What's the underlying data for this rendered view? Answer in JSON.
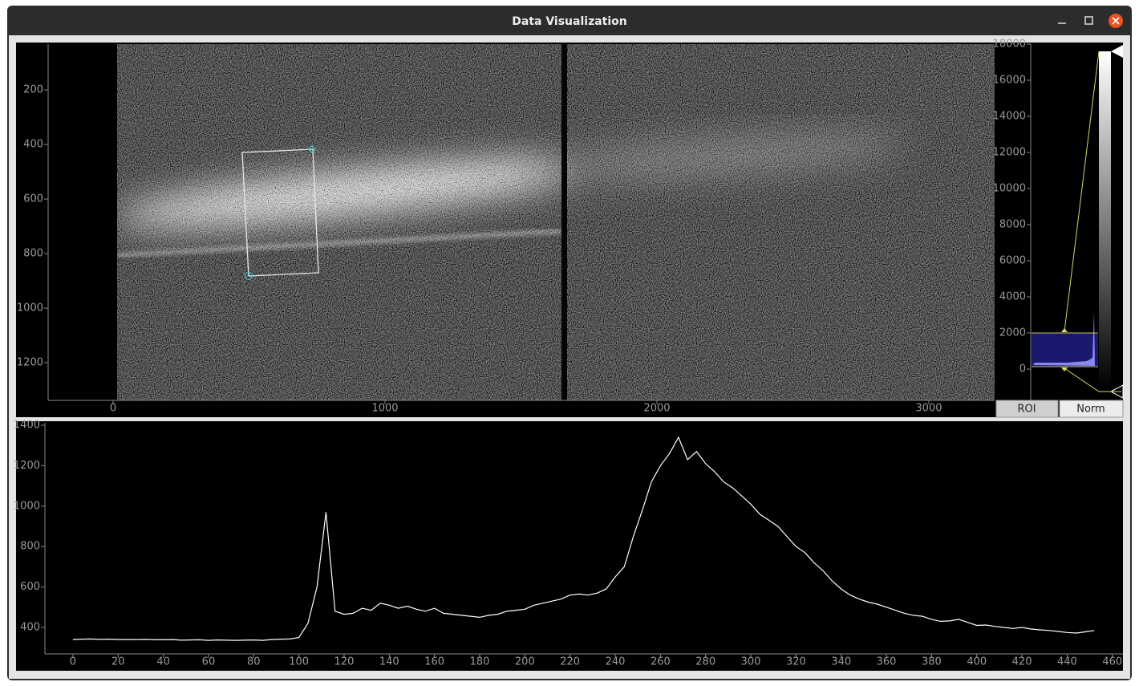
{
  "window": {
    "title": "Data Visualization"
  },
  "image_view": {
    "xlim": [
      -239,
      3242
    ],
    "xticks": [
      0,
      1000,
      2000,
      3000
    ],
    "ylim": [
      1338,
      32
    ],
    "yticks": [
      200,
      400,
      600,
      800,
      1000,
      1200
    ]
  },
  "histogram": {
    "ylim": [
      -1733,
      18000
    ],
    "yticks": [
      0,
      2000,
      4000,
      6000,
      8000,
      10000,
      12000,
      14000,
      16000,
      18000
    ]
  },
  "buttons": [
    "ROI",
    "Norm"
  ],
  "chart_data": {
    "type": "line",
    "xlim": [
      -12.4,
      464.7
    ],
    "xticks": [
      0,
      20,
      40,
      60,
      80,
      100,
      120,
      140,
      160,
      180,
      200,
      220,
      240,
      260,
      280,
      300,
      320,
      340,
      360,
      380,
      400,
      420,
      440,
      460
    ],
    "ylim": [
      269,
      1412
    ],
    "yticks": [
      400,
      600,
      800,
      1000,
      1200,
      1400
    ],
    "x": [
      0,
      4,
      8,
      12,
      16,
      20,
      24,
      28,
      32,
      36,
      40,
      44,
      48,
      52,
      56,
      60,
      64,
      68,
      72,
      76,
      80,
      84,
      88,
      92,
      96,
      100,
      104,
      108,
      112,
      116,
      120,
      124,
      128,
      132,
      136,
      140,
      144,
      148,
      152,
      156,
      160,
      164,
      168,
      172,
      176,
      180,
      184,
      188,
      192,
      196,
      200,
      204,
      208,
      212,
      216,
      220,
      224,
      228,
      232,
      236,
      240,
      244,
      248,
      252,
      256,
      260,
      264,
      268,
      272,
      276,
      280,
      284,
      288,
      292,
      296,
      300,
      304,
      308,
      312,
      316,
      320,
      324,
      328,
      332,
      336,
      340,
      344,
      348,
      352,
      356,
      360,
      364,
      368,
      372,
      376,
      380,
      384,
      388,
      392,
      396,
      400,
      404,
      408,
      412,
      416,
      420,
      424,
      428,
      432,
      436,
      440,
      444,
      448,
      452
    ],
    "series": [
      {
        "color": "#ffffff",
        "values": [
          340,
          342,
          343,
          341,
          342,
          340,
          340,
          340,
          341,
          339,
          339,
          340,
          337,
          338,
          339,
          336,
          338,
          337,
          336,
          337,
          338,
          336,
          340,
          342,
          343,
          350,
          420,
          600,
          970,
          480,
          465,
          470,
          495,
          485,
          520,
          510,
          495,
          505,
          490,
          480,
          495,
          470,
          465,
          460,
          455,
          450,
          460,
          465,
          480,
          485,
          490,
          510,
          520,
          530,
          540,
          560,
          565,
          560,
          570,
          590,
          650,
          700,
          850,
          980,
          1120,
          1200,
          1260,
          1340,
          1230,
          1270,
          1210,
          1170,
          1120,
          1090,
          1050,
          1010,
          960,
          930,
          900,
          850,
          800,
          770,
          720,
          680,
          630,
          590,
          560,
          540,
          525,
          515,
          500,
          485,
          470,
          460,
          455,
          440,
          430,
          432,
          440,
          425,
          410,
          412,
          405,
          400,
          395,
          400,
          392,
          388,
          385,
          380,
          375,
          372,
          378,
          385
        ]
      }
    ]
  }
}
